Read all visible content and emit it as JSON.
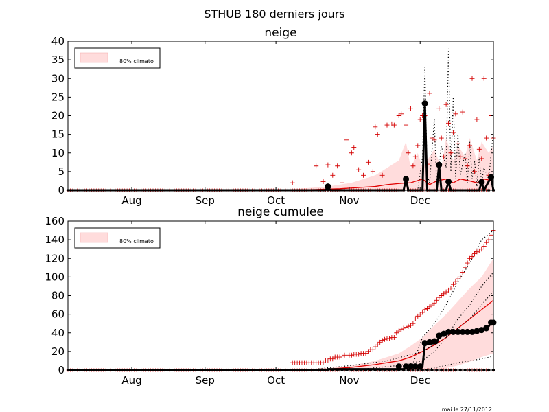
{
  "figure": {
    "suptitle": "STHUB 180 derniers jours",
    "footer": "mai le 27/11/2012"
  },
  "chart_data": [
    {
      "type": "line",
      "title": "neige",
      "xlabel": "",
      "ylabel": "",
      "xlim": [
        0,
        180
      ],
      "ylim": [
        0,
        40
      ],
      "yticks": [
        0,
        5,
        10,
        15,
        20,
        25,
        30,
        35,
        40
      ],
      "xticks": [
        {
          "x": 27,
          "label": "Aug"
        },
        {
          "x": 58,
          "label": "Sep"
        },
        {
          "x": 88,
          "label": "Oct"
        },
        {
          "x": 119,
          "label": "Nov"
        },
        {
          "x": 149,
          "label": "Dec"
        }
      ],
      "legend": {
        "label": "80% climato",
        "placement": "top-left"
      },
      "colors": {
        "band": "#ffdcdc",
        "median": "#e00000",
        "markers": "#d40000",
        "observed": "#000000"
      },
      "band": {
        "x": [
          0,
          90,
          100,
          110,
          120,
          125,
          130,
          135,
          140,
          143,
          145,
          148,
          150,
          153,
          155,
          158,
          160,
          163,
          165,
          168,
          170,
          173,
          175,
          178,
          180
        ],
        "y0": [
          0,
          0,
          0,
          0,
          0,
          0,
          0,
          0,
          0,
          0,
          0,
          0,
          0,
          0,
          0,
          0,
          0,
          0,
          0,
          0,
          0,
          0,
          0,
          0,
          0
        ],
        "y1": [
          0,
          0,
          0.5,
          1,
          2,
          3,
          4,
          6,
          8,
          13,
          6,
          10,
          6,
          9,
          11,
          6,
          14,
          8,
          12,
          9,
          14,
          8,
          13,
          10,
          12
        ]
      },
      "series": [
        {
          "style": "median",
          "x": [
            0,
            95,
            105,
            115,
            120,
            125,
            130,
            135,
            140,
            145,
            150,
            153,
            156,
            160,
            163,
            166,
            170,
            173,
            176,
            180
          ],
          "y": [
            0,
            0,
            0.2,
            0.4,
            0.6,
            0.8,
            1,
            1.5,
            1.8,
            2,
            3,
            1.5,
            2.5,
            3,
            2,
            3,
            2.5,
            2,
            3,
            2.5
          ]
        },
        {
          "style": "dotted",
          "x": [
            0,
            148,
            150,
            151,
            152,
            153,
            155,
            156,
            158,
            160,
            161,
            162,
            163,
            164,
            165,
            166,
            168,
            169,
            170,
            171,
            172,
            173,
            174,
            175,
            176,
            178,
            180
          ],
          "y": [
            0,
            0,
            9,
            33,
            4,
            2,
            19,
            1,
            12,
            6,
            38,
            5,
            25,
            3,
            15,
            4,
            10,
            2,
            13,
            3,
            8,
            1,
            9,
            2,
            6,
            3,
            16
          ]
        },
        {
          "style": "observed",
          "x": [
            0,
            109,
            110,
            111,
            142,
            143,
            144,
            150,
            151,
            152,
            156,
            157,
            158,
            160,
            161,
            162,
            174,
            175,
            176,
            179,
            180
          ],
          "y": [
            0,
            0,
            1,
            0,
            0,
            3,
            0,
            0,
            23.3,
            0,
            0,
            6.8,
            0,
            0,
            2.3,
            0,
            0,
            2.2,
            0,
            3.5,
            0
          ],
          "highlight": [
            [
              110,
              1
            ],
            [
              143,
              3
            ],
            [
              151,
              23.3
            ],
            [
              157,
              6.8
            ],
            [
              161,
              2.3
            ],
            [
              175,
              2.2
            ],
            [
              179,
              3.5
            ]
          ]
        }
      ],
      "scatter": {
        "x": [
          95,
          105,
          108,
          110,
          112,
          114,
          116,
          118,
          120,
          121,
          123,
          125,
          127,
          129,
          130,
          131,
          133,
          135,
          137,
          138,
          140,
          141,
          143,
          144,
          145,
          146,
          147,
          148,
          149,
          150,
          151,
          152,
          153,
          154,
          155,
          157,
          158,
          159,
          160,
          161,
          162,
          163,
          164,
          165,
          166,
          167,
          168,
          169,
          170,
          171,
          172,
          173,
          174,
          175,
          176,
          177,
          178,
          179,
          180
        ],
        "y": [
          2,
          6.5,
          2.3,
          6.8,
          4,
          6.5,
          2,
          13.5,
          10,
          11.5,
          5.5,
          4,
          7.5,
          5,
          17,
          15,
          4,
          17.5,
          17.8,
          17.5,
          20,
          20.5,
          17.5,
          10,
          22,
          6.5,
          9,
          12,
          19,
          20,
          20,
          7,
          26,
          14,
          13.5,
          22,
          14,
          9,
          23,
          18,
          10,
          15.5,
          20.5,
          12.5,
          9,
          21,
          8.5,
          6.5,
          12,
          30,
          5,
          19,
          11,
          8.5,
          30,
          14,
          4,
          20,
          14
        ]
      }
    },
    {
      "type": "line",
      "title": "neige cumulee",
      "xlabel": "",
      "ylabel": "",
      "xlim": [
        0,
        180
      ],
      "ylim": [
        0,
        160
      ],
      "yticks": [
        0,
        20,
        40,
        60,
        80,
        100,
        120,
        140,
        160
      ],
      "xticks": [
        {
          "x": 27,
          "label": "Aug"
        },
        {
          "x": 58,
          "label": "Sep"
        },
        {
          "x": 88,
          "label": "Oct"
        },
        {
          "x": 119,
          "label": "Nov"
        },
        {
          "x": 149,
          "label": "Dec"
        }
      ],
      "legend": {
        "label": "80% climato",
        "placement": "top-left"
      },
      "colors": {
        "band": "#ffdcdc",
        "median": "#e00000",
        "markers": "#d40000",
        "observed": "#000000"
      },
      "band": {
        "x": [
          0,
          95,
          110,
          120,
          130,
          140,
          145,
          150,
          155,
          160,
          165,
          170,
          175,
          180
        ],
        "y0": [
          0,
          0,
          0,
          0,
          0,
          0,
          0,
          0,
          0,
          2,
          5,
          9,
          14,
          18
        ],
        "y1": [
          0,
          0,
          2,
          5,
          10,
          18,
          26,
          35,
          48,
          60,
          74,
          88,
          100,
          120
        ]
      },
      "series": [
        {
          "style": "median",
          "x": [
            0,
            100,
            110,
            120,
            130,
            140,
            145,
            150,
            155,
            160,
            165,
            170,
            175,
            180
          ],
          "y": [
            0,
            0,
            1,
            3,
            6,
            10,
            14,
            20,
            27,
            35,
            45,
            55,
            65,
            75
          ]
        },
        {
          "style": "dotted",
          "x": [
            0,
            100,
            120,
            135,
            150,
            160,
            165,
            170,
            175,
            180
          ],
          "y": [
            0,
            0,
            5,
            10,
            20,
            35,
            45,
            55,
            70,
            85
          ]
        },
        {
          "style": "dotted",
          "x": [
            0,
            120,
            140,
            150,
            155,
            160,
            165,
            170,
            175,
            180
          ],
          "y": [
            0,
            0,
            5,
            10,
            20,
            35,
            55,
            70,
            90,
            105
          ]
        },
        {
          "style": "dotted",
          "x": [
            0,
            145,
            150,
            155,
            160,
            165,
            170,
            175,
            180
          ],
          "y": [
            0,
            0,
            35,
            50,
            70,
            95,
            115,
            140,
            150
          ]
        },
        {
          "style": "dotted",
          "x": [
            0,
            150,
            160,
            165,
            170,
            175,
            180
          ],
          "y": [
            0,
            0,
            5,
            8,
            10,
            12,
            15
          ]
        },
        {
          "style": "observed",
          "x": [
            0,
            108,
            109,
            110,
            141,
            142,
            143,
            150,
            151,
            156,
            157,
            160,
            161,
            173,
            174,
            178,
            179,
            180
          ],
          "y": [
            0,
            0,
            0,
            1,
            1,
            1,
            4,
            4,
            28,
            29,
            36,
            38,
            41,
            41,
            43,
            47,
            51,
            51
          ],
          "highlight": [
            [
              140,
              4
            ],
            [
              143,
              4
            ],
            [
              145,
              4
            ],
            [
              147,
              4
            ],
            [
              149,
              4
            ],
            [
              151,
              29
            ],
            [
              153,
              30
            ],
            [
              155,
              31
            ],
            [
              157,
              37
            ],
            [
              159,
              39
            ],
            [
              161,
              41
            ],
            [
              163,
              41
            ],
            [
              165,
              41
            ],
            [
              167,
              41
            ],
            [
              169,
              41
            ],
            [
              171,
              41
            ],
            [
              173,
              42
            ],
            [
              175,
              43
            ],
            [
              177,
              45
            ],
            [
              179,
              51
            ],
            [
              180,
              51
            ]
          ]
        }
      ],
      "scatter": {
        "x": [
          95,
          96,
          97,
          98,
          99,
          100,
          101,
          102,
          103,
          104,
          105,
          106,
          107,
          108,
          109,
          110,
          111,
          112,
          113,
          114,
          115,
          116,
          117,
          118,
          119,
          120,
          121,
          122,
          123,
          124,
          125,
          126,
          127,
          128,
          129,
          130,
          131,
          132,
          133,
          134,
          135,
          136,
          137,
          138,
          139,
          140,
          141,
          142,
          143,
          144,
          145,
          146,
          147,
          148,
          149,
          150,
          151,
          152,
          153,
          154,
          155,
          156,
          157,
          158,
          159,
          160,
          161,
          162,
          163,
          164,
          165,
          166,
          167,
          168,
          169,
          170,
          171,
          172,
          173,
          174,
          175,
          176,
          177,
          178,
          179,
          180
        ],
        "y": [
          8,
          8,
          8,
          8,
          8,
          8,
          8,
          8,
          8,
          8,
          8,
          8,
          8,
          8,
          10,
          10,
          12,
          12,
          14,
          14,
          14,
          15,
          16,
          16,
          16,
          16,
          17,
          17,
          17,
          18,
          18,
          18,
          20,
          22,
          22,
          25,
          27,
          30,
          32,
          33,
          34,
          34,
          35,
          35,
          40,
          42,
          44,
          45,
          46,
          47,
          48,
          50,
          55,
          58,
          60,
          62,
          65,
          66,
          68,
          70,
          72,
          75,
          78,
          80,
          82,
          84,
          86,
          88,
          92,
          95,
          98,
          100,
          105,
          110,
          115,
          120,
          122,
          125,
          127,
          128,
          130,
          133,
          137,
          140,
          145,
          150
        ]
      }
    }
  ]
}
